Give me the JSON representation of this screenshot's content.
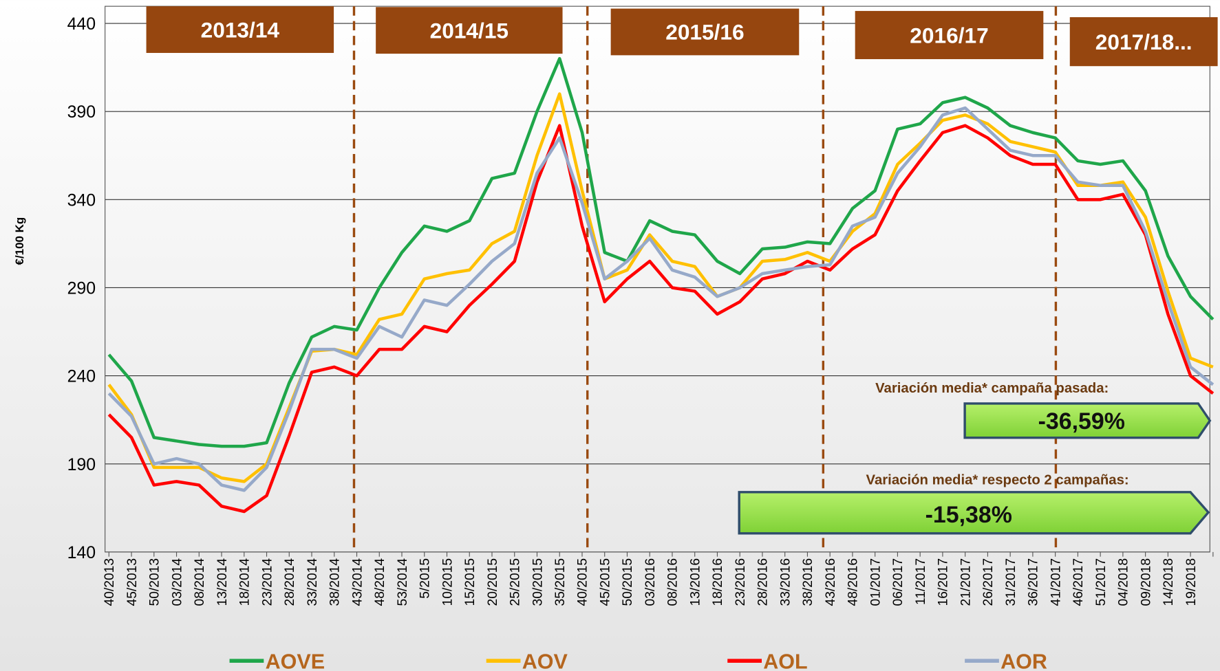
{
  "chart_data": {
    "type": "line",
    "y_label": "€/100 Kg",
    "campaigns": [
      "2013/14",
      "2014/15",
      "2015/16",
      "2016/17",
      "2017/18..."
    ],
    "annotations": [
      "Variación media* campaña pasada:",
      "-36,59%",
      "Variación media* respecto 2 campañas:",
      "-15,38%"
    ],
    "categories": [
      "40/2013",
      "45/2013",
      "50/2013",
      "03/2014",
      "08/2014",
      "13/2014",
      "18/2014",
      "23/2014",
      "28/2014",
      "33/2014",
      "38/2014",
      "43/2014",
      "48/2014",
      "53/2014",
      "5/2015",
      "10/2015",
      "15/2015",
      "20/2015",
      "25/2015",
      "30/2015",
      "35/2015",
      "40/2015",
      "45/2015",
      "50/2015",
      "03/2016",
      "08/2016",
      "13/2016",
      "18/2016",
      "23/2016",
      "28/2016",
      "33/2016",
      "38/2016",
      "43/2016",
      "48/2016",
      "01/2017",
      "06/2017",
      "11/2017",
      "16/2017",
      "21/2017",
      "26/2017",
      "31/2017",
      "36/2017",
      "41/2017",
      "46/2017",
      "51/2017",
      "04/2018",
      "09/2018",
      "14/2018",
      "19/2018",
      null
    ],
    "series": [
      {
        "name": "AOVE",
        "color": "#1fa64a",
        "values": [
          252,
          237,
          205,
          203,
          201,
          200,
          200,
          202,
          236,
          262,
          268,
          266,
          290,
          310,
          325,
          322,
          328,
          352,
          355,
          390,
          420,
          378,
          310,
          305,
          328,
          322,
          320,
          305,
          298,
          312,
          313,
          316,
          315,
          335,
          345,
          380,
          383,
          395,
          398,
          392,
          382,
          378,
          375,
          362,
          360,
          362,
          345,
          308,
          285,
          272
        ]
      },
      {
        "name": "AOV",
        "color": "#ffc000",
        "values": [
          235,
          218,
          188,
          188,
          188,
          182,
          180,
          190,
          222,
          254,
          255,
          252,
          272,
          275,
          295,
          298,
          300,
          315,
          322,
          365,
          400,
          345,
          295,
          300,
          320,
          305,
          302,
          285,
          290,
          305,
          306,
          310,
          305,
          322,
          332,
          360,
          372,
          385,
          388,
          383,
          373,
          370,
          367,
          348,
          348,
          350,
          330,
          288,
          250,
          245
        ]
      },
      {
        "name": "AOL",
        "color": "#ff0000",
        "values": [
          218,
          205,
          178,
          180,
          178,
          166,
          163,
          172,
          206,
          242,
          245,
          240,
          255,
          255,
          268,
          265,
          280,
          292,
          305,
          350,
          382,
          325,
          282,
          295,
          305,
          290,
          288,
          275,
          282,
          295,
          298,
          305,
          300,
          312,
          320,
          345,
          362,
          378,
          382,
          375,
          365,
          360,
          360,
          340,
          340,
          343,
          320,
          275,
          240,
          230
        ]
      },
      {
        "name": "AOR",
        "color": "#96a9c9",
        "values": [
          230,
          217,
          190,
          193,
          190,
          178,
          175,
          188,
          220,
          255,
          255,
          250,
          268,
          262,
          283,
          280,
          292,
          305,
          315,
          355,
          375,
          338,
          295,
          305,
          318,
          300,
          296,
          285,
          290,
          298,
          300,
          302,
          303,
          325,
          330,
          355,
          370,
          388,
          392,
          380,
          368,
          365,
          365,
          350,
          348,
          348,
          322,
          282,
          245,
          235
        ]
      }
    ],
    "ylim": [
      140,
      440
    ],
    "yticks": [
      140,
      190,
      240,
      290,
      340,
      390,
      440
    ],
    "grid": true
  }
}
